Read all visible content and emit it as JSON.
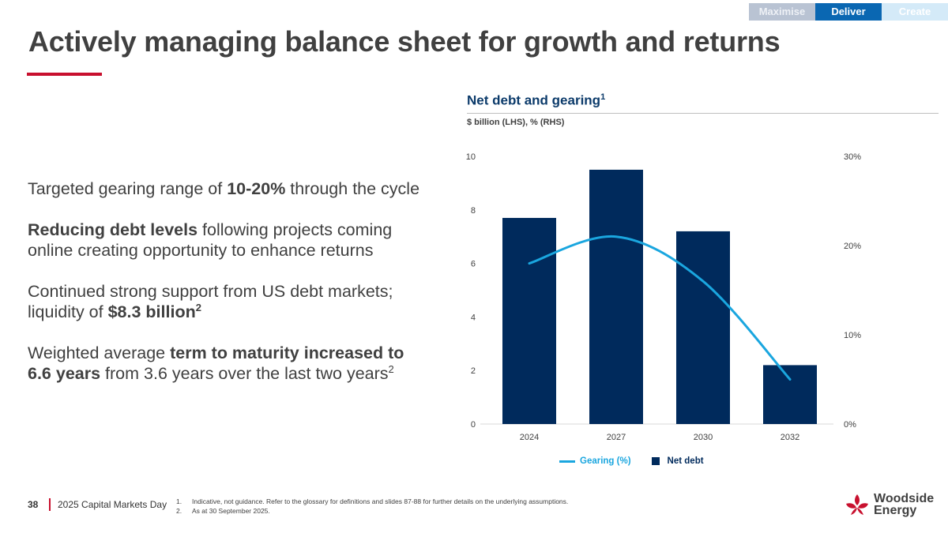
{
  "nav": {
    "tabs": [
      "Maximise",
      "Deliver",
      "Create"
    ],
    "active": "Deliver"
  },
  "title": "Actively managing balance sheet for growth and returns",
  "bullets": {
    "b1": {
      "pre": "Targeted gearing range of ",
      "bold": "10-20%",
      "post": " through the cycle"
    },
    "b2": {
      "bold": "Reducing debt levels",
      "post": " following projects coming online creating opportunity to enhance returns"
    },
    "b3": {
      "pre": "Continued strong support from US debt markets; liquidity of ",
      "bold": "$8.3 billion",
      "sup": "2"
    },
    "b4": {
      "pre": "Weighted average ",
      "bold1": "term to maturity increased to",
      "bold2": "6.6 years",
      "post": " from 3.6 years over the last two years",
      "sup": "2"
    }
  },
  "chart_data": {
    "type": "bar",
    "title": "Net debt and gearing",
    "title_sup": "1",
    "subtitle": "$ billion (LHS), % (RHS)",
    "categories": [
      "2024",
      "2027",
      "2030",
      "2032"
    ],
    "series": [
      {
        "name": "Net debt",
        "type": "bar",
        "axis": "left",
        "color": "#002a5c",
        "values": [
          7.7,
          9.5,
          7.2,
          2.2
        ]
      },
      {
        "name": "Gearing (%)",
        "type": "line",
        "axis": "right",
        "color": "#1aa6df",
        "values": [
          18,
          21,
          16,
          5
        ],
        "smooth": true
      }
    ],
    "y_left": {
      "min": 0,
      "max": 10,
      "ticks": [
        "0",
        "2",
        "4",
        "6",
        "8",
        "10"
      ]
    },
    "y_right": {
      "min": 0,
      "max": 30,
      "ticks": [
        "0%",
        "10%",
        "20%",
        "30%"
      ]
    },
    "legend": [
      "Gearing (%)",
      "Net debt"
    ],
    "legend_position": "bottom-center"
  },
  "footer": {
    "page": "38",
    "event": "2025 Capital Markets Day",
    "notes": [
      {
        "num": "1.",
        "text": "Indicative, not guidance. Refer to the glossary for definitions and slides 87-88 for further details on the underlying assumptions."
      },
      {
        "num": "2.",
        "text": "As at 30 September 2025."
      }
    ]
  },
  "logo": {
    "line1": "Woodside",
    "line2": "Energy"
  },
  "colors": {
    "navy": "#002a5c",
    "cyan": "#1aa6df",
    "red": "#c8102e",
    "deliver_blue": "#0a67b2"
  }
}
